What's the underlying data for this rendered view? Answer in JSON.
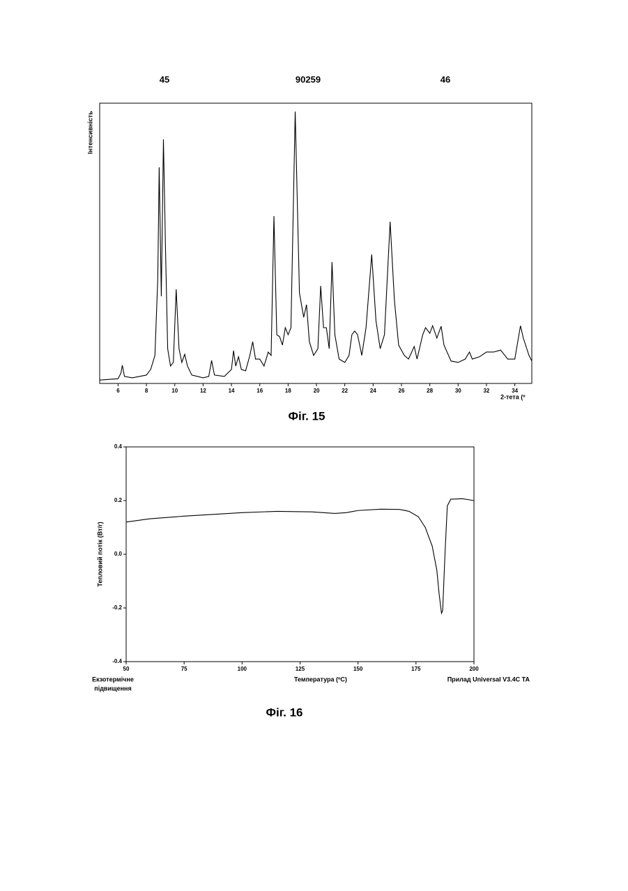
{
  "header": {
    "left": "45",
    "center": "90259",
    "right": "46"
  },
  "chart_data": [
    {
      "type": "line",
      "caption": "Фіг. 15",
      "xlabel": "2-тета (º",
      "ylabel": "Інтенсивність",
      "color": "#000000",
      "x": [
        4.7,
        6.0,
        6.2,
        6.3,
        6.45,
        7,
        8,
        8.3,
        8.6,
        8.8,
        8.9,
        9.05,
        9.2,
        9.35,
        9.5,
        9.7,
        9.9,
        10.1,
        10.3,
        10.5,
        10.7,
        10.9,
        11.2,
        12,
        12.4,
        12.6,
        12.8,
        13.5,
        14,
        14.15,
        14.3,
        14.5,
        14.7,
        15,
        15.3,
        15.5,
        15.7,
        16,
        16.3,
        16.6,
        16.8,
        17,
        17.2,
        17.4,
        17.6,
        17.8,
        18,
        18.2,
        18.5,
        18.8,
        19.1,
        19.3,
        19.5,
        19.8,
        20.1,
        20.3,
        20.5,
        20.7,
        20.9,
        21.1,
        21.3,
        21.6,
        22,
        22.3,
        22.5,
        22.7,
        22.9,
        23.2,
        23.5,
        23.9,
        24.2,
        24.5,
        24.8,
        25.2,
        25.5,
        25.8,
        26.2,
        26.5,
        26.9,
        27.1,
        27.5,
        27.7,
        28,
        28.2,
        28.5,
        28.8,
        29.0,
        29.5,
        30,
        30.5,
        30.8,
        31,
        31.5,
        32,
        32.5,
        33,
        33.5,
        34,
        34.4,
        34.6,
        35,
        35.2
      ],
      "values": [
        1.2,
        1.7,
        3.7,
        6.5,
        2.5,
        2.0,
        3.0,
        5.0,
        10.0,
        37.3,
        77.1,
        31.1,
        87.1,
        47.3,
        12.4,
        6.2,
        7.5,
        33.6,
        12.4,
        7.5,
        10.4,
        6.2,
        3.0,
        2.0,
        2.5,
        8.2,
        3.0,
        2.5,
        5.0,
        11.7,
        6.2,
        9.5,
        5.0,
        4.5,
        10.0,
        14.9,
        8.7,
        8.7,
        6.2,
        11.2,
        10.0,
        59.7,
        17.4,
        16.7,
        13.7,
        19.9,
        17.4,
        19.9,
        97.0,
        32.3,
        23.6,
        28.1,
        14.9,
        10.0,
        12.4,
        34.8,
        19.9,
        19.9,
        12.4,
        43.3,
        17.4,
        8.7,
        7.5,
        10.0,
        17.4,
        18.7,
        17.4,
        10.0,
        19.9,
        46.0,
        22.4,
        12.4,
        17.4,
        57.7,
        29.9,
        13.7,
        10.0,
        8.7,
        13.2,
        8.7,
        17.4,
        19.9,
        17.9,
        20.6,
        16.2,
        20.4,
        13.7,
        8.0,
        7.5,
        8.7,
        11.2,
        8.7,
        9.5,
        11.2,
        11.2,
        11.9,
        8.7,
        8.7,
        20.6,
        16.2,
        10.0,
        8.0
      ],
      "xlim": [
        4.7,
        35.2
      ],
      "ylim": [
        0,
        100
      ],
      "xticks": [
        6,
        8,
        10,
        12,
        14,
        16,
        18,
        20,
        22,
        24,
        26,
        28,
        30,
        32,
        34
      ]
    },
    {
      "type": "line",
      "caption": "Фіг. 16",
      "xlabel": "Температура (ºC)",
      "ylabel": "Тепловий потік (Вт/г)",
      "left_note": [
        "Екзотермічне",
        "підвищення"
      ],
      "right_note": "Прилад Universal V3.4C TA",
      "color": "#000000",
      "x": [
        50,
        60,
        75,
        100,
        115,
        130,
        140,
        145,
        150,
        160,
        168,
        172,
        176,
        179,
        182,
        184,
        185,
        186,
        186.5,
        187.5,
        188.5,
        190,
        195,
        200
      ],
      "values": [
        0.12,
        0.132,
        0.142,
        0.155,
        0.16,
        0.158,
        0.152,
        0.155,
        0.163,
        0.168,
        0.167,
        0.16,
        0.14,
        0.1,
        0.03,
        -0.06,
        -0.15,
        -0.22,
        -0.21,
        0.0,
        0.18,
        0.205,
        0.207,
        0.2
      ],
      "xlim": [
        50,
        200
      ],
      "ylim": [
        -0.4,
        0.4
      ],
      "xticks": [
        50,
        75,
        100,
        125,
        150,
        175,
        200
      ],
      "yticks": [
        0.4,
        0.2,
        {
          "value": 0,
          "label": "0.0"
        },
        -0.2,
        -0.4
      ]
    }
  ]
}
